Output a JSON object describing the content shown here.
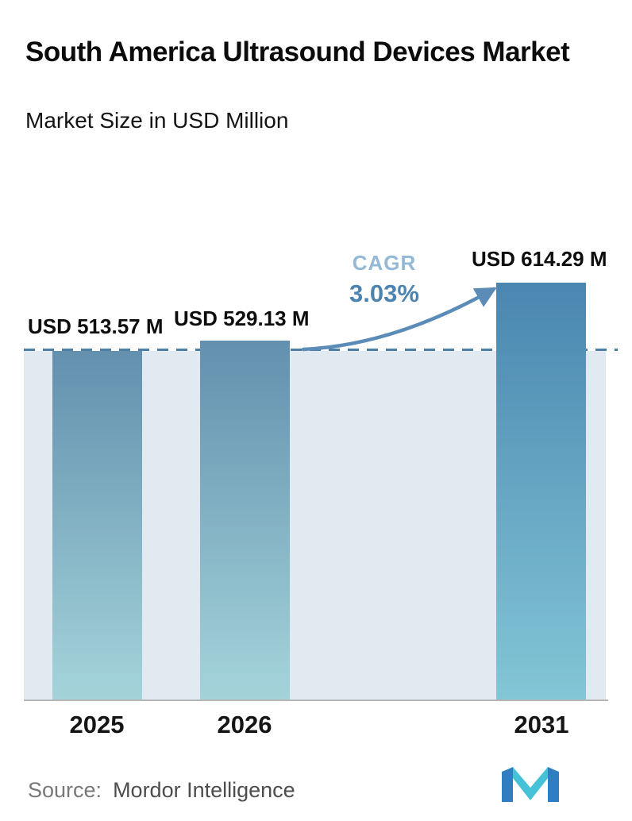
{
  "header": {
    "title": "South America Ultrasound Devices Market",
    "subtitle": "Market Size in USD Million"
  },
  "chart_data": {
    "type": "bar",
    "title": "South America Ultrasound Devices Market",
    "subtitle": "Market Size in USD Million",
    "unit": "USD Million",
    "categories": [
      "2025",
      "2026",
      "2031"
    ],
    "values": [
      513.57,
      529.13,
      614.29
    ],
    "value_labels": [
      "USD 513.57 M",
      "USD 529.13 M",
      "USD 614.29 M"
    ],
    "annotation": {
      "label": "CAGR",
      "value": "3.03%"
    },
    "reference_line": 513.57,
    "grid": false,
    "legend": "none",
    "axes_visible": false
  },
  "footer": {
    "source_label": "Source:",
    "source_value": "Mordor Intelligence"
  },
  "colors": {
    "bar_top": "#6290ae",
    "bar_bottom": "#a4d4da",
    "bar_highlight_top": "#4a86b0",
    "bar_highlight_bottom": "#83c6d6",
    "band": "#e1eaf1",
    "dashed_line": "#4d7ea3",
    "cagr_label": "#93b9d6",
    "cagr_value": "#4c84b1",
    "arrow": "#5b8cb8",
    "baseline": "#b5b5b5",
    "logo_blue": "#2f7ec1",
    "logo_teal": "#45c2d8"
  }
}
